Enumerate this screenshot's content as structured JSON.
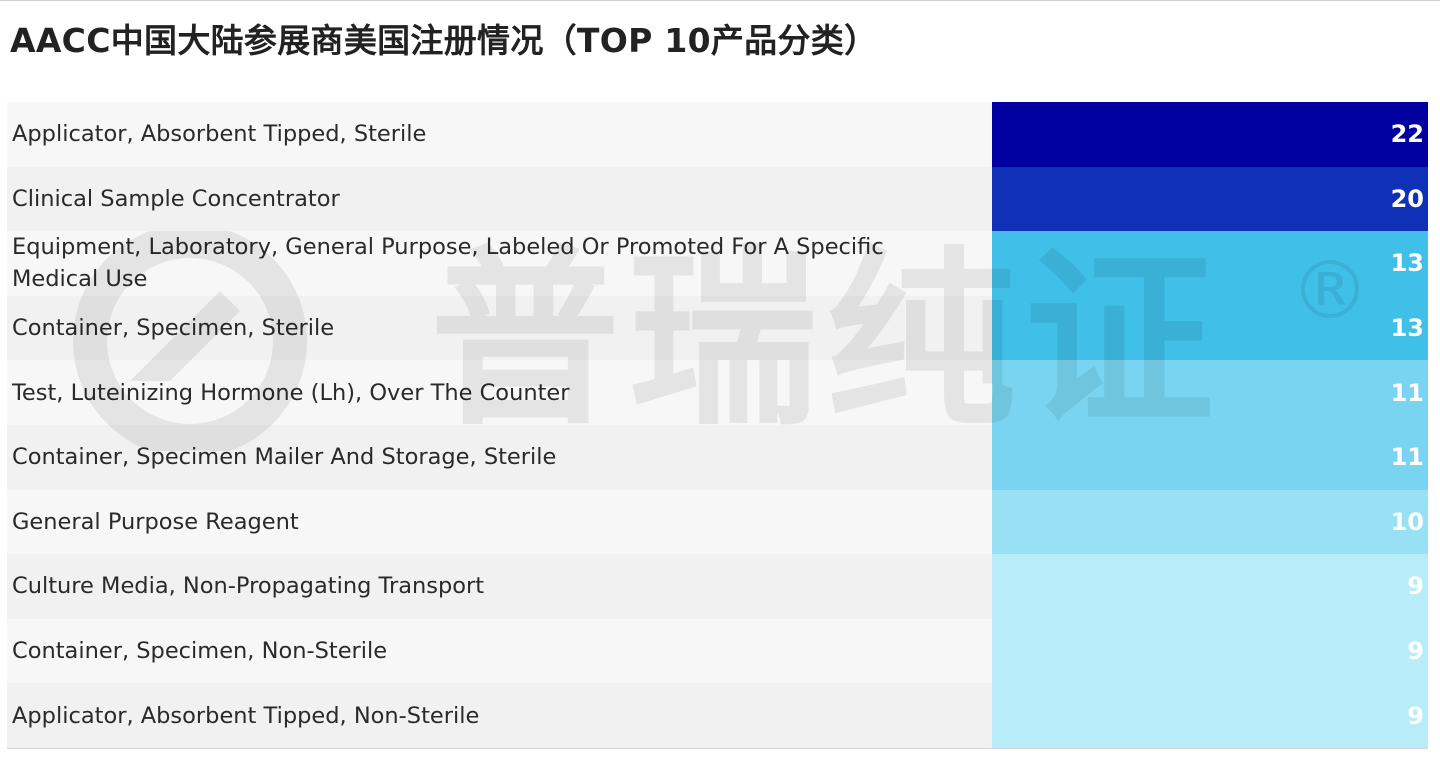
{
  "title": "AACC中国大陆参展商美国注册情况（TOP 10产品分类）",
  "watermark": {
    "text": "普瑞纯证",
    "reg_mark": "®",
    "logo_icon": "pureconsult-logo-icon"
  },
  "colors": {
    "scale": [
      "#0000a0",
      "#1030b8",
      "#40bfe8",
      "#40bfe8",
      "#78d4f0",
      "#78d4f0",
      "#98e0f4",
      "#b8ecf8",
      "#b8ecf8",
      "#b8ecf8"
    ]
  },
  "chart_data": {
    "type": "table",
    "title": "AACC中国大陆参展商美国注册情况（TOP 10产品分类）",
    "rows": [
      {
        "label": "Applicator, Absorbent Tipped, Sterile",
        "value": 22
      },
      {
        "label": "Clinical Sample Concentrator",
        "value": 20
      },
      {
        "label": "Equipment, Laboratory, General Purpose, Labeled Or Promoted For A Specific Medical Use",
        "value": 13
      },
      {
        "label": "Container, Specimen, Sterile",
        "value": 13
      },
      {
        "label": "Test, Luteinizing Hormone (Lh), Over The Counter",
        "value": 11
      },
      {
        "label": "Container, Specimen Mailer And Storage, Sterile",
        "value": 11
      },
      {
        "label": "General Purpose Reagent",
        "value": 10
      },
      {
        "label": "Culture Media, Non-Propagating Transport",
        "value": 9
      },
      {
        "label": "Container, Specimen, Non-Sterile",
        "value": 9
      },
      {
        "label": "Applicator, Absorbent Tipped, Non-Sterile",
        "value": 9
      }
    ]
  }
}
